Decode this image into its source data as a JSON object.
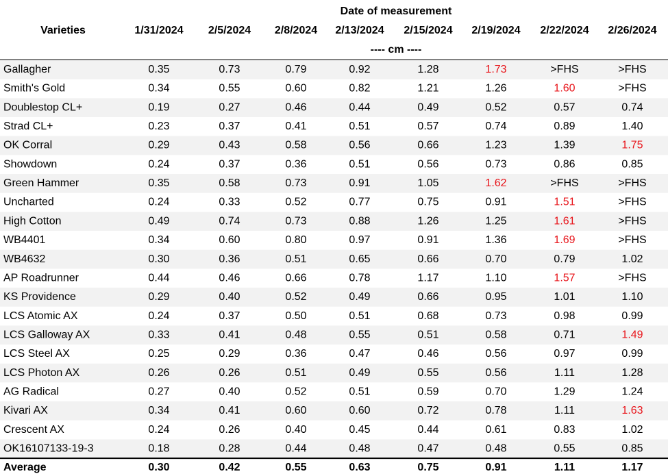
{
  "table": {
    "row_header": "Varieties",
    "group_header": "Date of measurement",
    "unit": "---- cm ----",
    "columns": [
      "1/31/2024",
      "2/5/2024",
      "2/8/2024",
      "2/13/2024",
      "2/15/2024",
      "2/19/2024",
      "2/22/2024",
      "2/26/2024"
    ],
    "rows": [
      [
        "Gallagher",
        "0.35",
        "0.73",
        "0.79",
        "0.92",
        "1.28",
        "1.73",
        ">FHS",
        ">FHS"
      ],
      [
        "Smith's Gold",
        "0.34",
        "0.55",
        "0.60",
        "0.82",
        "1.21",
        "1.26",
        "1.60",
        ">FHS"
      ],
      [
        "Doublestop CL+",
        "0.19",
        "0.27",
        "0.46",
        "0.44",
        "0.49",
        "0.52",
        "0.57",
        "0.74"
      ],
      [
        "Strad CL+",
        "0.23",
        "0.37",
        "0.41",
        "0.51",
        "0.57",
        "0.74",
        "0.89",
        "1.40"
      ],
      [
        "OK Corral",
        "0.29",
        "0.43",
        "0.58",
        "0.56",
        "0.66",
        "1.23",
        "1.39",
        "1.75"
      ],
      [
        "Showdown",
        "0.24",
        "0.37",
        "0.36",
        "0.51",
        "0.56",
        "0.73",
        "0.86",
        "0.85"
      ],
      [
        "Green Hammer",
        "0.35",
        "0.58",
        "0.73",
        "0.91",
        "1.05",
        "1.62",
        ">FHS",
        ">FHS"
      ],
      [
        "Uncharted",
        "0.24",
        "0.33",
        "0.52",
        "0.77",
        "0.75",
        "0.91",
        "1.51",
        ">FHS"
      ],
      [
        "High Cotton",
        "0.49",
        "0.74",
        "0.73",
        "0.88",
        "1.26",
        "1.25",
        "1.61",
        ">FHS"
      ],
      [
        "WB4401",
        "0.34",
        "0.60",
        "0.80",
        "0.97",
        "0.91",
        "1.36",
        "1.69",
        ">FHS"
      ],
      [
        "WB4632",
        "0.30",
        "0.36",
        "0.51",
        "0.65",
        "0.66",
        "0.70",
        "0.79",
        "1.02"
      ],
      [
        "AP Roadrunner",
        "0.44",
        "0.46",
        "0.66",
        "0.78",
        "1.17",
        "1.10",
        "1.57",
        ">FHS"
      ],
      [
        "KS Providence",
        "0.29",
        "0.40",
        "0.52",
        "0.49",
        "0.66",
        "0.95",
        "1.01",
        "1.10"
      ],
      [
        "LCS Atomic AX",
        "0.24",
        "0.37",
        "0.50",
        "0.51",
        "0.68",
        "0.73",
        "0.98",
        "0.99"
      ],
      [
        "LCS Galloway AX",
        "0.33",
        "0.41",
        "0.48",
        "0.55",
        "0.51",
        "0.58",
        "0.71",
        "1.49"
      ],
      [
        "LCS Steel AX",
        "0.25",
        "0.29",
        "0.36",
        "0.47",
        "0.46",
        "0.56",
        "0.97",
        "0.99"
      ],
      [
        "LCS Photon AX",
        "0.26",
        "0.26",
        "0.51",
        "0.49",
        "0.55",
        "0.56",
        "1.11",
        "1.28"
      ],
      [
        "AG Radical",
        "0.27",
        "0.40",
        "0.52",
        "0.51",
        "0.59",
        "0.70",
        "1.29",
        "1.24"
      ],
      [
        "Kivari AX",
        "0.34",
        "0.41",
        "0.60",
        "0.60",
        "0.72",
        "0.78",
        "1.11",
        "1.63"
      ],
      [
        "Crescent AX",
        "0.24",
        "0.26",
        "0.40",
        "0.45",
        "0.44",
        "0.61",
        "0.83",
        "1.02"
      ],
      [
        "OK16107133-19-3",
        "0.18",
        "0.28",
        "0.44",
        "0.48",
        "0.47",
        "0.48",
        "0.55",
        "0.85"
      ]
    ],
    "average": [
      "Average",
      "0.30",
      "0.42",
      "0.55",
      "0.63",
      "0.75",
      "0.91",
      "1.11",
      "1.17"
    ],
    "highlight_color": "#e8141a",
    "highlighted_cells": [
      [
        0,
        6
      ],
      [
        1,
        7
      ],
      [
        4,
        8
      ],
      [
        6,
        6
      ],
      [
        7,
        7
      ],
      [
        8,
        7
      ],
      [
        9,
        7
      ],
      [
        11,
        7
      ],
      [
        14,
        8
      ],
      [
        18,
        8
      ]
    ]
  }
}
